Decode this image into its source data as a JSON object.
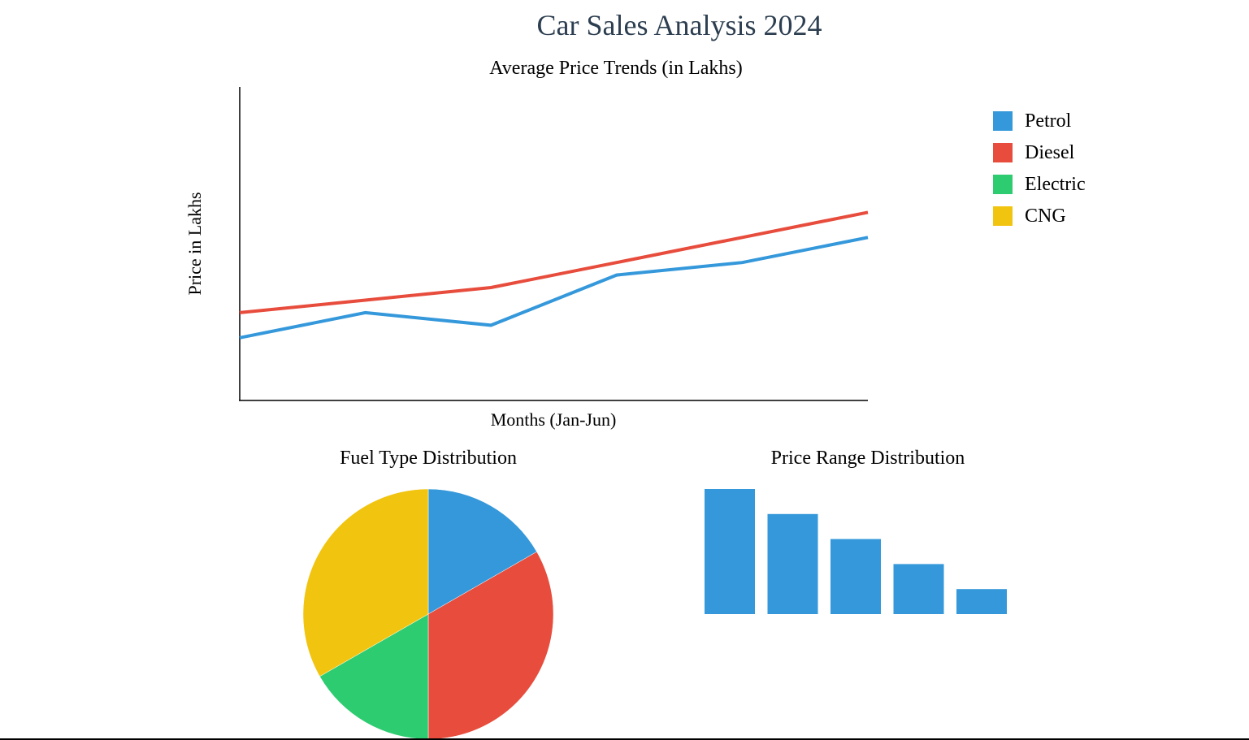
{
  "page": {
    "title": "Car Sales Analysis 2024"
  },
  "colors": {
    "petrol": "#3498db",
    "diesel": "#e74c3c",
    "electric": "#2ecc71",
    "cng": "#f1c40f",
    "title": "#2c3e50",
    "axis": "#000000"
  },
  "chart_data": [
    {
      "type": "line",
      "title": "Average Price Trends (in Lakhs)",
      "xlabel": "Months (Jan-Jun)",
      "ylabel": "Price in Lakhs",
      "x": [
        1,
        2,
        3,
        4,
        5,
        6
      ],
      "ylim": [
        0,
        25
      ],
      "series": [
        {
          "name": "Petrol",
          "color": "#3498db",
          "values": [
            5,
            7,
            6,
            10,
            11,
            13
          ]
        },
        {
          "name": "Diesel",
          "color": "#e74c3c",
          "values": [
            7,
            8,
            9,
            11,
            13,
            15
          ]
        }
      ],
      "legend": {
        "position": "right",
        "entries": [
          {
            "label": "Petrol",
            "color": "#3498db"
          },
          {
            "label": "Diesel",
            "color": "#e74c3c"
          },
          {
            "label": "Electric",
            "color": "#2ecc71"
          },
          {
            "label": "CNG",
            "color": "#f1c40f"
          }
        ]
      },
      "grid": false
    },
    {
      "type": "pie",
      "title": "Fuel Type Distribution",
      "slices": [
        {
          "label": "Petrol",
          "value": 16.7,
          "color": "#3498db"
        },
        {
          "label": "Diesel",
          "value": 33.3,
          "color": "#e74c3c"
        },
        {
          "label": "Electric",
          "value": 16.7,
          "color": "#2ecc71"
        },
        {
          "label": "CNG",
          "value": 33.3,
          "color": "#f1c40f"
        }
      ]
    },
    {
      "type": "bar",
      "title": "Price Range Distribution",
      "values": [
        5,
        4,
        3,
        2,
        1
      ],
      "color": "#3498db"
    }
  ]
}
